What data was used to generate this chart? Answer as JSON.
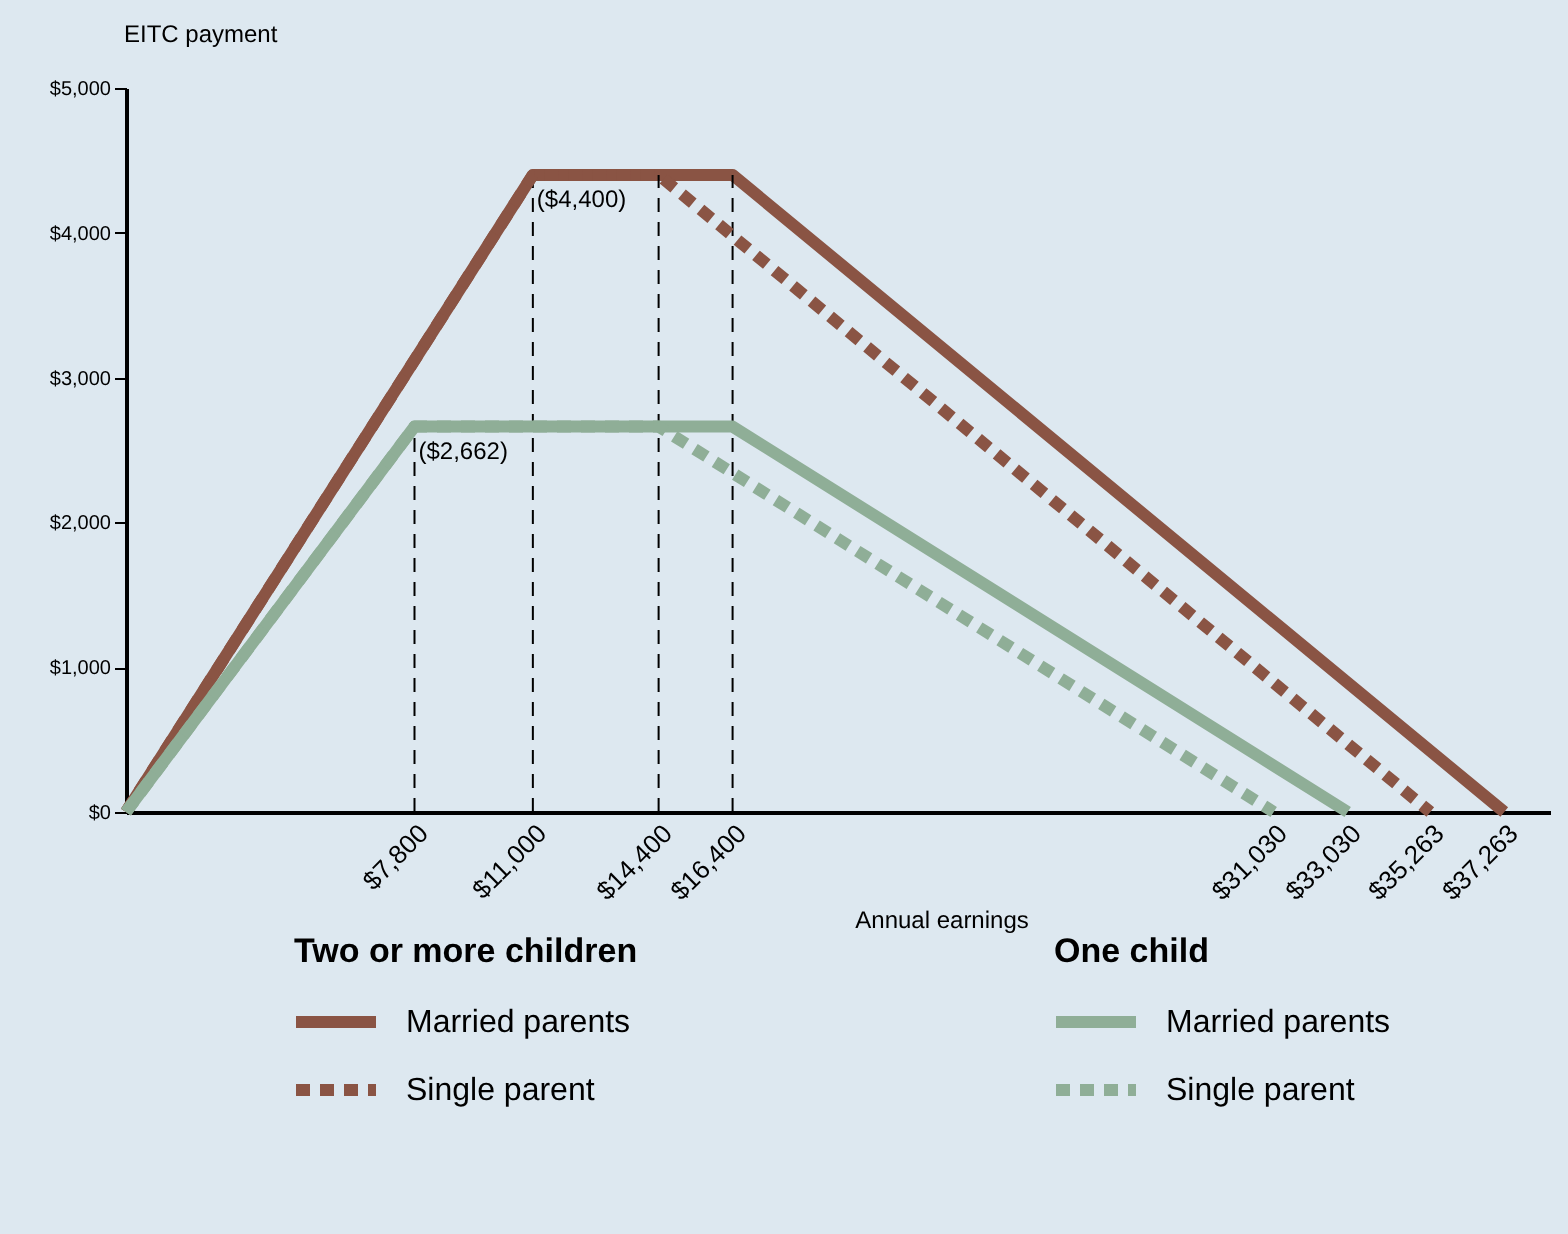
{
  "chart_data": {
    "type": "line",
    "xlabel": "Annual earnings",
    "ylabel": "EITC payment",
    "xlim": [
      0,
      38500
    ],
    "ylim": [
      0,
      5000
    ],
    "xticks": [
      {
        "value": 7800,
        "label": "$7,800"
      },
      {
        "value": 11000,
        "label": "$11,000"
      },
      {
        "value": 14400,
        "label": "$14,400"
      },
      {
        "value": 16400,
        "label": "$16,400"
      },
      {
        "value": 31030,
        "label": "$31,030"
      },
      {
        "value": 33030,
        "label": "$33,030"
      },
      {
        "value": 35263,
        "label": "$35,263"
      },
      {
        "value": 37263,
        "label": "$37,263"
      }
    ],
    "yticks": [
      {
        "value": 0,
        "label": "$0"
      },
      {
        "value": 1000,
        "label": "$1,000"
      },
      {
        "value": 2000,
        "label": "$2,000"
      },
      {
        "value": 3000,
        "label": "$3,000"
      },
      {
        "value": 4000,
        "label": "$4,000"
      },
      {
        "value": 5000,
        "label": "$5,000"
      }
    ],
    "grid": false,
    "legend": "bottom",
    "marker": "none",
    "series": [
      {
        "name": "Married parents",
        "color": "#8a5444",
        "line_style": "solid",
        "x": [
          0,
          11000,
          16400,
          37263
        ],
        "values": [
          0,
          4400,
          4400,
          0
        ]
      },
      {
        "name": "Single parent",
        "color": "#8a5444",
        "line_style": "dashed",
        "x": [
          0,
          11000,
          14400,
          35263
        ],
        "values": [
          0,
          4400,
          4400,
          0
        ]
      },
      {
        "name": "Married parents",
        "color": "#8fae97",
        "line_style": "solid",
        "x": [
          0,
          7800,
          16400,
          33030
        ],
        "values": [
          0,
          2662,
          2662,
          0
        ]
      },
      {
        "name": "Single parent",
        "color": "#8fae97",
        "line_style": "dashed",
        "x": [
          0,
          7800,
          14400,
          31030
        ],
        "values": [
          0,
          2662,
          2662,
          0
        ]
      }
    ],
    "ref_lines": [
      {
        "axis": "x",
        "value": 7800,
        "line_style": "dashed"
      },
      {
        "axis": "x",
        "value": 11000,
        "line_style": "dashed"
      },
      {
        "axis": "x",
        "value": 14400,
        "line_style": "dashed"
      },
      {
        "axis": "x",
        "value": 16400,
        "line_style": "dashed"
      }
    ],
    "annotations": [
      "Two or more children",
      "One child",
      {
        "text": "($4,400)",
        "x": 11000,
        "y": 4400
      },
      {
        "text": "($2,662)",
        "x": 7800,
        "y": 2662
      }
    ]
  }
}
